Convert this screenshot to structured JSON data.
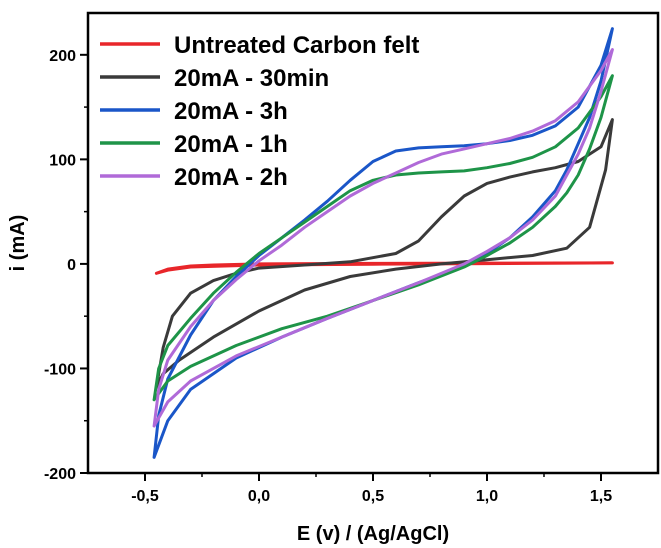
{
  "chart_data": {
    "type": "line",
    "title": "",
    "xlabel": "E (v) / (Ag/AgCl)",
    "ylabel": "i (mA)",
    "xlim": [
      -0.75,
      1.75
    ],
    "ylim": [
      -200,
      240
    ],
    "x_ticks": [
      -0.5,
      0.0,
      0.5,
      1.0,
      1.5
    ],
    "x_tick_labels": [
      "-0,5",
      "0,0",
      "0,5",
      "1,0",
      "1,5"
    ],
    "y_ticks": [
      -200,
      -100,
      0,
      100,
      200
    ],
    "y_tick_labels": [
      "-200",
      "-100",
      "0",
      "100",
      "200"
    ],
    "legend_position": "top-left",
    "grid": false,
    "series": [
      {
        "name": "Untreated Carbon felt",
        "color": "#e8262a",
        "points": [
          [
            -0.45,
            -9
          ],
          [
            -0.4,
            -5
          ],
          [
            -0.3,
            -2
          ],
          [
            -0.2,
            -1
          ],
          [
            0.0,
            0
          ],
          [
            0.5,
            0.5
          ],
          [
            1.0,
            0.8
          ],
          [
            1.55,
            1
          ],
          [
            1.55,
            1
          ],
          [
            1.0,
            0.3
          ],
          [
            0.5,
            -0.3
          ],
          [
            0.0,
            -1
          ],
          [
            -0.3,
            -3
          ],
          [
            -0.4,
            -6
          ],
          [
            -0.45,
            -9
          ]
        ]
      },
      {
        "name": "20mA - 30min",
        "color": "#3a3a3a",
        "points": [
          [
            -0.45,
            -118
          ],
          [
            -0.42,
            -80
          ],
          [
            -0.38,
            -50
          ],
          [
            -0.3,
            -28
          ],
          [
            -0.2,
            -16
          ],
          [
            -0.1,
            -9
          ],
          [
            0.0,
            -4
          ],
          [
            0.2,
            -1
          ],
          [
            0.4,
            2
          ],
          [
            0.6,
            10
          ],
          [
            0.7,
            22
          ],
          [
            0.8,
            45
          ],
          [
            0.9,
            65
          ],
          [
            1.0,
            77
          ],
          [
            1.1,
            83
          ],
          [
            1.2,
            88
          ],
          [
            1.3,
            92
          ],
          [
            1.4,
            98
          ],
          [
            1.5,
            112
          ],
          [
            1.55,
            138
          ],
          [
            1.55,
            138
          ],
          [
            1.52,
            90
          ],
          [
            1.45,
            35
          ],
          [
            1.35,
            15
          ],
          [
            1.2,
            8
          ],
          [
            1.0,
            4
          ],
          [
            0.8,
            0
          ],
          [
            0.6,
            -5
          ],
          [
            0.4,
            -12
          ],
          [
            0.2,
            -25
          ],
          [
            0.0,
            -45
          ],
          [
            -0.2,
            -70
          ],
          [
            -0.35,
            -92
          ],
          [
            -0.42,
            -105
          ],
          [
            -0.45,
            -118
          ]
        ]
      },
      {
        "name": "20mA - 3h",
        "color": "#1a56c8",
        "points": [
          [
            -0.46,
            -185
          ],
          [
            -0.44,
            -145
          ],
          [
            -0.4,
            -110
          ],
          [
            -0.3,
            -68
          ],
          [
            -0.2,
            -35
          ],
          [
            -0.1,
            -12
          ],
          [
            0.0,
            8
          ],
          [
            0.1,
            25
          ],
          [
            0.2,
            42
          ],
          [
            0.3,
            60
          ],
          [
            0.4,
            80
          ],
          [
            0.5,
            98
          ],
          [
            0.6,
            108
          ],
          [
            0.7,
            111
          ],
          [
            0.8,
            112
          ],
          [
            0.9,
            113
          ],
          [
            1.0,
            115
          ],
          [
            1.1,
            118
          ],
          [
            1.2,
            123
          ],
          [
            1.3,
            132
          ],
          [
            1.4,
            150
          ],
          [
            1.5,
            190
          ],
          [
            1.55,
            225
          ],
          [
            1.55,
            225
          ],
          [
            1.5,
            175
          ],
          [
            1.45,
            140
          ],
          [
            1.4,
            115
          ],
          [
            1.35,
            90
          ],
          [
            1.3,
            70
          ],
          [
            1.2,
            45
          ],
          [
            1.1,
            25
          ],
          [
            1.0,
            10
          ],
          [
            0.9,
            -2
          ],
          [
            0.7,
            -18
          ],
          [
            0.5,
            -35
          ],
          [
            0.3,
            -52
          ],
          [
            0.1,
            -70
          ],
          [
            -0.1,
            -90
          ],
          [
            -0.3,
            -120
          ],
          [
            -0.4,
            -150
          ],
          [
            -0.46,
            -185
          ]
        ]
      },
      {
        "name": "20mA - 1h",
        "color": "#1e9448",
        "points": [
          [
            -0.46,
            -130
          ],
          [
            -0.44,
            -100
          ],
          [
            -0.4,
            -78
          ],
          [
            -0.3,
            -52
          ],
          [
            -0.2,
            -28
          ],
          [
            -0.1,
            -8
          ],
          [
            0.0,
            10
          ],
          [
            0.1,
            25
          ],
          [
            0.2,
            40
          ],
          [
            0.3,
            55
          ],
          [
            0.4,
            70
          ],
          [
            0.5,
            80
          ],
          [
            0.6,
            85
          ],
          [
            0.7,
            87
          ],
          [
            0.8,
            88
          ],
          [
            0.9,
            89
          ],
          [
            1.0,
            92
          ],
          [
            1.1,
            96
          ],
          [
            1.2,
            102
          ],
          [
            1.3,
            112
          ],
          [
            1.4,
            130
          ],
          [
            1.5,
            160
          ],
          [
            1.55,
            180
          ],
          [
            1.55,
            180
          ],
          [
            1.5,
            140
          ],
          [
            1.45,
            110
          ],
          [
            1.4,
            85
          ],
          [
            1.35,
            68
          ],
          [
            1.3,
            55
          ],
          [
            1.2,
            35
          ],
          [
            1.1,
            20
          ],
          [
            1.0,
            8
          ],
          [
            0.9,
            -3
          ],
          [
            0.7,
            -20
          ],
          [
            0.5,
            -35
          ],
          [
            0.3,
            -50
          ],
          [
            0.1,
            -62
          ],
          [
            -0.1,
            -78
          ],
          [
            -0.3,
            -98
          ],
          [
            -0.4,
            -112
          ],
          [
            -0.46,
            -130
          ]
        ]
      },
      {
        "name": "20mA - 2h",
        "color": "#b06ad8",
        "points": [
          [
            -0.46,
            -155
          ],
          [
            -0.44,
            -120
          ],
          [
            -0.4,
            -92
          ],
          [
            -0.3,
            -60
          ],
          [
            -0.2,
            -35
          ],
          [
            -0.1,
            -15
          ],
          [
            0.0,
            3
          ],
          [
            0.1,
            18
          ],
          [
            0.2,
            35
          ],
          [
            0.3,
            50
          ],
          [
            0.4,
            65
          ],
          [
            0.5,
            77
          ],
          [
            0.6,
            87
          ],
          [
            0.7,
            97
          ],
          [
            0.8,
            105
          ],
          [
            0.9,
            110
          ],
          [
            1.0,
            115
          ],
          [
            1.1,
            120
          ],
          [
            1.2,
            127
          ],
          [
            1.3,
            137
          ],
          [
            1.4,
            155
          ],
          [
            1.5,
            185
          ],
          [
            1.55,
            205
          ],
          [
            1.55,
            205
          ],
          [
            1.5,
            165
          ],
          [
            1.45,
            130
          ],
          [
            1.4,
            105
          ],
          [
            1.35,
            85
          ],
          [
            1.3,
            65
          ],
          [
            1.2,
            42
          ],
          [
            1.1,
            25
          ],
          [
            1.0,
            12
          ],
          [
            0.9,
            0
          ],
          [
            0.7,
            -18
          ],
          [
            0.5,
            -35
          ],
          [
            0.3,
            -52
          ],
          [
            0.1,
            -70
          ],
          [
            -0.1,
            -88
          ],
          [
            -0.3,
            -112
          ],
          [
            -0.4,
            -132
          ],
          [
            -0.46,
            -155
          ]
        ]
      }
    ]
  }
}
